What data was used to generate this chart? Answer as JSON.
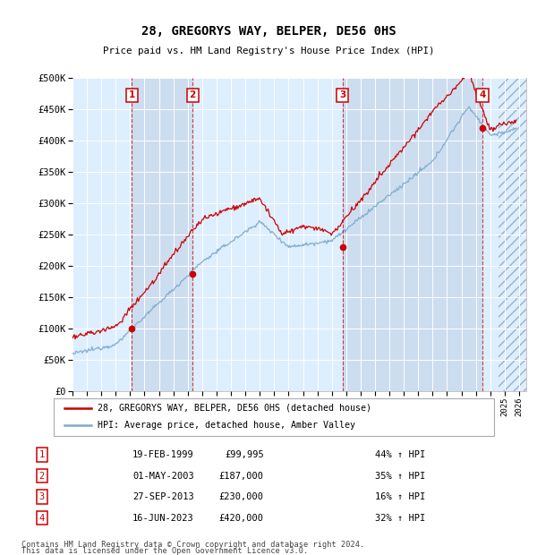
{
  "title": "28, GREGORYS WAY, BELPER, DE56 0HS",
  "subtitle": "Price paid vs. HM Land Registry's House Price Index (HPI)",
  "ylim": [
    0,
    500000
  ],
  "yticks": [
    0,
    50000,
    100000,
    150000,
    200000,
    250000,
    300000,
    350000,
    400000,
    450000,
    500000
  ],
  "ytick_labels": [
    "£0",
    "£50K",
    "£100K",
    "£150K",
    "£200K",
    "£250K",
    "£300K",
    "£350K",
    "£400K",
    "£450K",
    "£500K"
  ],
  "xlim_start": 1995.0,
  "xlim_end": 2026.5,
  "sales": [
    {
      "year": 1999.12,
      "price": 99995,
      "label": "1",
      "date": "19-FEB-1999",
      "pct": "44%",
      "display_price": "£99,995"
    },
    {
      "year": 2003.33,
      "price": 187000,
      "label": "2",
      "date": "01-MAY-2003",
      "pct": "35%",
      "display_price": "£187,000"
    },
    {
      "year": 2013.74,
      "price": 230000,
      "label": "3",
      "date": "27-SEP-2013",
      "pct": "16%",
      "display_price": "£230,000"
    },
    {
      "year": 2023.45,
      "price": 420000,
      "label": "4",
      "date": "16-JUN-2023",
      "pct": "32%",
      "display_price": "£420,000"
    }
  ],
  "legend_line1": "28, GREGORYS WAY, BELPER, DE56 0HS (detached house)",
  "legend_line2": "HPI: Average price, detached house, Amber Valley",
  "footer1": "Contains HM Land Registry data © Crown copyright and database right 2024.",
  "footer2": "This data is licensed under the Open Government Licence v3.0.",
  "red_color": "#cc0000",
  "blue_color": "#7faacc",
  "band_color": "#ccddf0",
  "bg_color": "#ddeeff",
  "grid_color": "white"
}
